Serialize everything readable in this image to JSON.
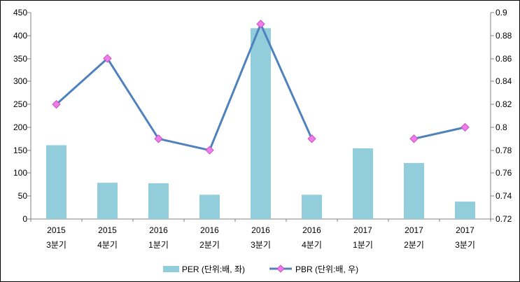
{
  "chart_data": {
    "type": "combo",
    "title": "",
    "categories": [
      {
        "year": "2015",
        "quarter": "3분기"
      },
      {
        "year": "2015",
        "quarter": "4분기"
      },
      {
        "year": "2016",
        "quarter": "1분기"
      },
      {
        "year": "2016",
        "quarter": "2분기"
      },
      {
        "year": "2016",
        "quarter": "3분기"
      },
      {
        "year": "2016",
        "quarter": "4분기"
      },
      {
        "year": "2017",
        "quarter": "1분기"
      },
      {
        "year": "2017",
        "quarter": "2분기"
      },
      {
        "year": "2017",
        "quarter": "3분기"
      }
    ],
    "series": [
      {
        "name": "PER (단위:배, 좌)",
        "type": "bar",
        "axis": "left",
        "values": [
          161,
          79,
          78,
          53,
          416,
          53,
          154,
          122,
          38
        ]
      },
      {
        "name": "PBR (단위:배, 우)",
        "type": "line",
        "axis": "right",
        "values": [
          0.82,
          0.86,
          0.79,
          0.78,
          0.89,
          0.79,
          null,
          0.79,
          0.8
        ]
      }
    ],
    "axes": {
      "left": {
        "min": 0,
        "max": 450,
        "step": 50,
        "ticks": [
          "0",
          "50",
          "100",
          "150",
          "200",
          "250",
          "300",
          "350",
          "400",
          "450"
        ]
      },
      "right": {
        "min": 0.72,
        "max": 0.9,
        "step": 0.02,
        "ticks": [
          "0.72",
          "0.74",
          "0.76",
          "0.78",
          "0.8",
          "0.82",
          "0.84",
          "0.86",
          "0.88",
          "0.9"
        ]
      }
    },
    "grid": "off",
    "legend_position": "bottom",
    "colors": {
      "bar": "#92CDDC",
      "line": "#4F81BD",
      "marker_fill": "#EE7DE9",
      "marker_stroke": "#C653C6",
      "axis": "#808080",
      "text": "#000000",
      "border": "#000000",
      "background": "#FFFFFF"
    }
  }
}
